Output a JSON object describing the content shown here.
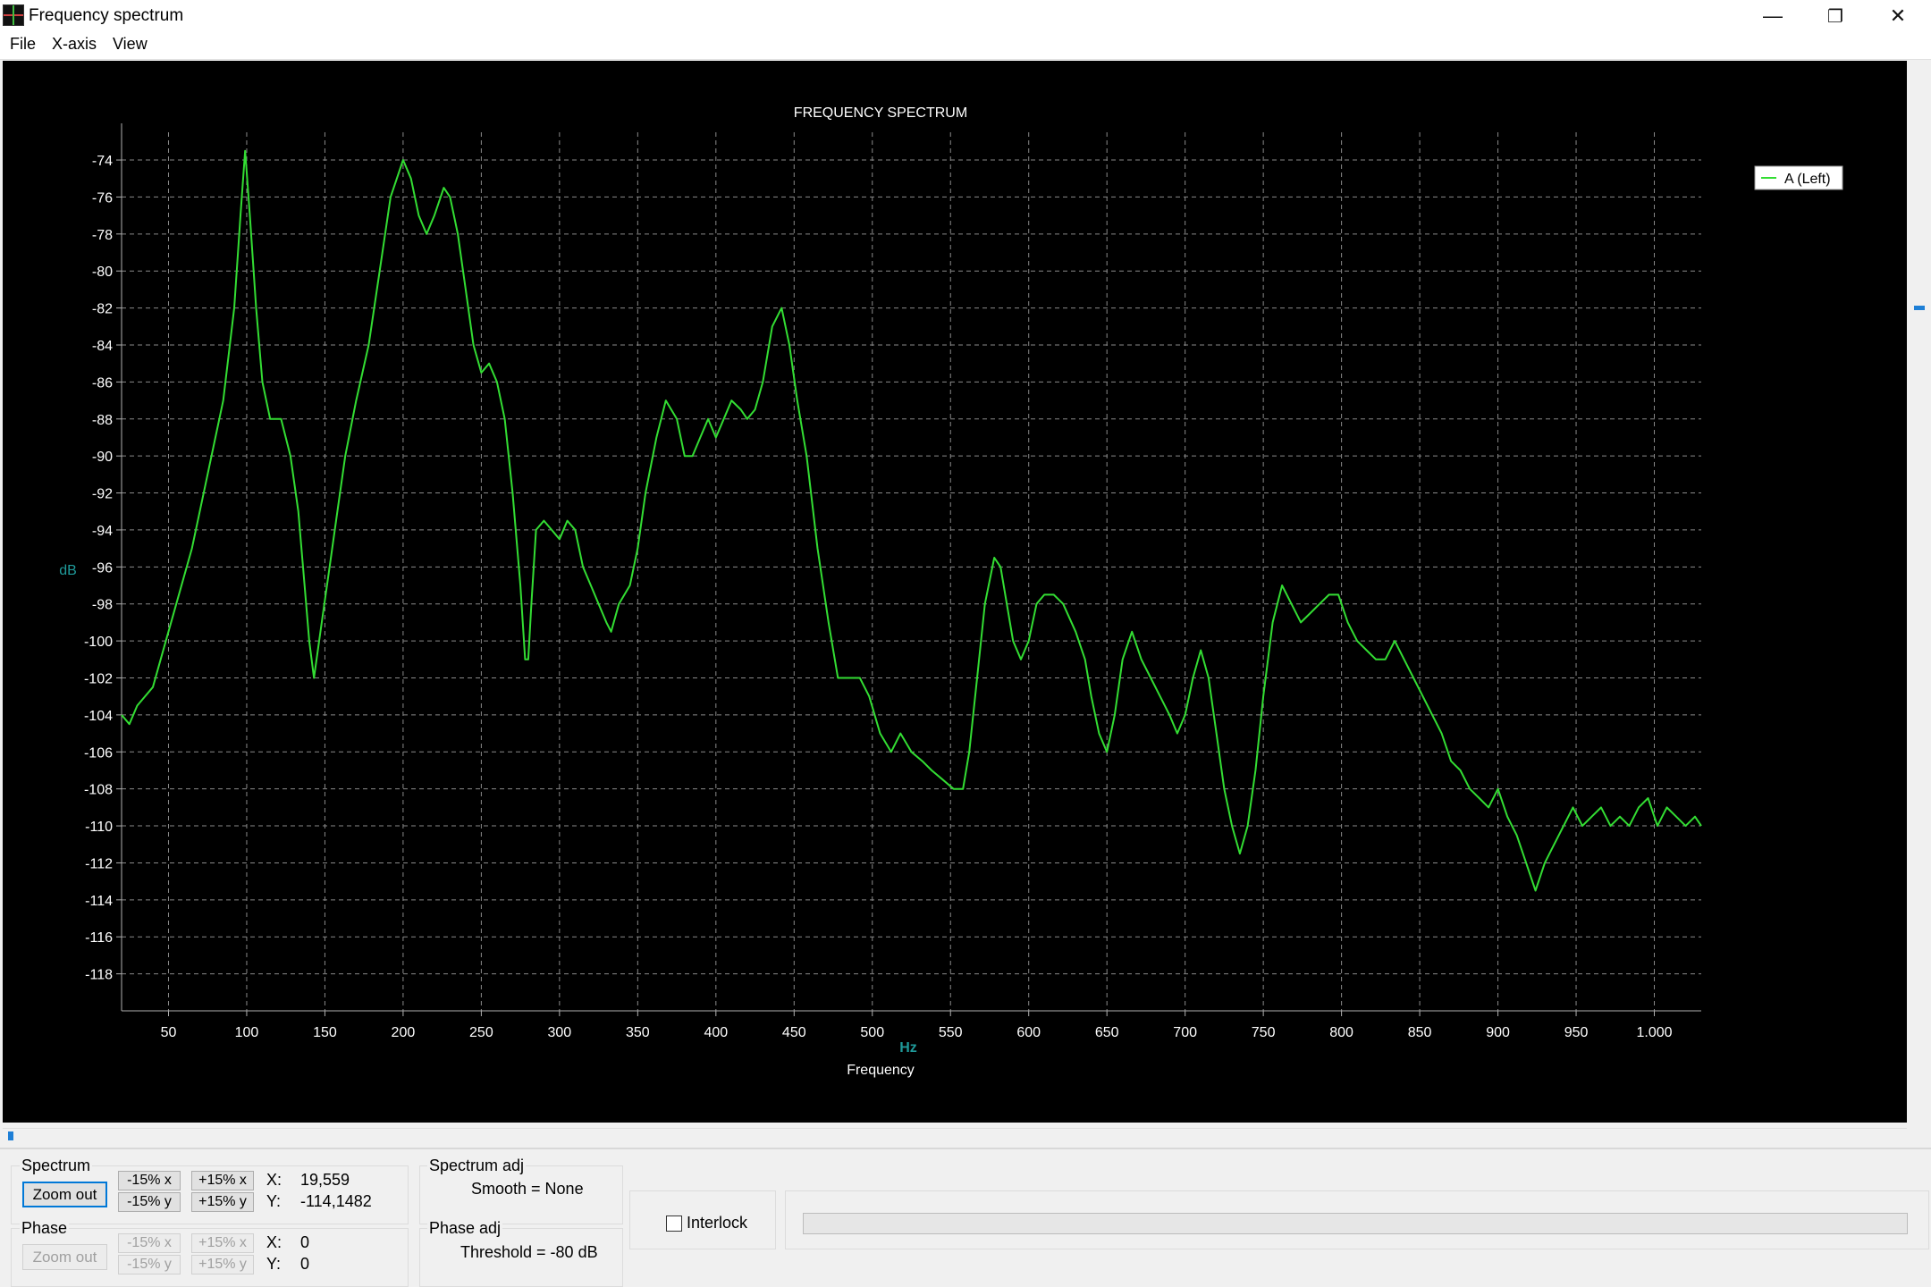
{
  "window": {
    "title": "Frequency spectrum",
    "controls": {
      "minimize": "—",
      "restore": "❐",
      "close": "✕"
    }
  },
  "menu": [
    "File",
    "X-axis",
    "View"
  ],
  "chart_data": {
    "type": "line",
    "title": "FREQUENCY SPECTRUM",
    "xlabel": "Frequency",
    "x_unit": "Hz",
    "ylabel": "dB",
    "xlim": [
      20,
      1030
    ],
    "ylim": [
      -120,
      -72.5
    ],
    "x_ticks": [
      50,
      100,
      150,
      200,
      250,
      300,
      350,
      400,
      450,
      500,
      550,
      600,
      650,
      700,
      750,
      800,
      850,
      900,
      950,
      1000
    ],
    "x_tick_labels": [
      "50",
      "100",
      "150",
      "200",
      "250",
      "300",
      "350",
      "400",
      "450",
      "500",
      "550",
      "600",
      "650",
      "700",
      "750",
      "800",
      "850",
      "900",
      "950",
      "1.000"
    ],
    "y_ticks": [
      -74,
      -76,
      -78,
      -80,
      -82,
      -84,
      -86,
      -88,
      -90,
      -92,
      -94,
      -96,
      -98,
      -100,
      -102,
      -104,
      -106,
      -108,
      -110,
      -112,
      -114,
      -116,
      -118
    ],
    "grid": true,
    "legend_position": "top-right",
    "background": "#000000",
    "series": [
      {
        "name": "A (Left)",
        "color": "#33dd33",
        "points": [
          [
            20,
            -104
          ],
          [
            25,
            -104.5
          ],
          [
            30,
            -103.5
          ],
          [
            40,
            -102.5
          ],
          [
            45,
            -101
          ],
          [
            55,
            -98
          ],
          [
            65,
            -95
          ],
          [
            75,
            -91
          ],
          [
            85,
            -87
          ],
          [
            92,
            -82
          ],
          [
            96,
            -77
          ],
          [
            99,
            -73.5
          ],
          [
            102,
            -77
          ],
          [
            106,
            -82
          ],
          [
            110,
            -86
          ],
          [
            115,
            -88
          ],
          [
            122,
            -88
          ],
          [
            128,
            -90
          ],
          [
            133,
            -93
          ],
          [
            137,
            -97
          ],
          [
            140,
            -100
          ],
          [
            143,
            -102
          ],
          [
            148,
            -99
          ],
          [
            153,
            -96
          ],
          [
            158,
            -93
          ],
          [
            163,
            -90
          ],
          [
            170,
            -87
          ],
          [
            178,
            -84
          ],
          [
            185,
            -80
          ],
          [
            192,
            -76
          ],
          [
            200,
            -74
          ],
          [
            205,
            -75
          ],
          [
            210,
            -77
          ],
          [
            215,
            -78
          ],
          [
            220,
            -77
          ],
          [
            226,
            -75.5
          ],
          [
            230,
            -76
          ],
          [
            235,
            -78
          ],
          [
            240,
            -81
          ],
          [
            245,
            -84
          ],
          [
            250,
            -85.5
          ],
          [
            255,
            -85
          ],
          [
            260,
            -86
          ],
          [
            265,
            -88
          ],
          [
            270,
            -92
          ],
          [
            275,
            -97
          ],
          [
            278,
            -101
          ],
          [
            280,
            -101
          ],
          [
            282,
            -98
          ],
          [
            285,
            -94
          ],
          [
            290,
            -93.5
          ],
          [
            295,
            -94
          ],
          [
            300,
            -94.5
          ],
          [
            305,
            -93.5
          ],
          [
            310,
            -94
          ],
          [
            315,
            -96
          ],
          [
            320,
            -97
          ],
          [
            325,
            -98
          ],
          [
            330,
            -99
          ],
          [
            333,
            -99.5
          ],
          [
            338,
            -98
          ],
          [
            345,
            -97
          ],
          [
            350,
            -95
          ],
          [
            355,
            -92
          ],
          [
            362,
            -89
          ],
          [
            368,
            -87
          ],
          [
            375,
            -88
          ],
          [
            380,
            -90
          ],
          [
            385,
            -90
          ],
          [
            390,
            -89
          ],
          [
            395,
            -88
          ],
          [
            400,
            -89
          ],
          [
            405,
            -88
          ],
          [
            410,
            -87
          ],
          [
            416,
            -87.5
          ],
          [
            420,
            -88
          ],
          [
            425,
            -87.5
          ],
          [
            430,
            -86
          ],
          [
            436,
            -83
          ],
          [
            442,
            -82
          ],
          [
            447,
            -84
          ],
          [
            452,
            -87
          ],
          [
            458,
            -90
          ],
          [
            465,
            -95
          ],
          [
            472,
            -99
          ],
          [
            478,
            -102
          ],
          [
            485,
            -102
          ],
          [
            492,
            -102
          ],
          [
            498,
            -103
          ],
          [
            505,
            -105
          ],
          [
            512,
            -106
          ],
          [
            518,
            -105
          ],
          [
            525,
            -106
          ],
          [
            532,
            -106.5
          ],
          [
            538,
            -107
          ],
          [
            545,
            -107.5
          ],
          [
            552,
            -108
          ],
          [
            558,
            -108
          ],
          [
            562,
            -106
          ],
          [
            567,
            -102
          ],
          [
            572,
            -98
          ],
          [
            578,
            -95.5
          ],
          [
            582,
            -96
          ],
          [
            586,
            -98
          ],
          [
            590,
            -100
          ],
          [
            595,
            -101
          ],
          [
            600,
            -100
          ],
          [
            605,
            -98
          ],
          [
            610,
            -97.5
          ],
          [
            616,
            -97.5
          ],
          [
            622,
            -98
          ],
          [
            630,
            -99.5
          ],
          [
            636,
            -101
          ],
          [
            640,
            -103
          ],
          [
            645,
            -105
          ],
          [
            650,
            -106
          ],
          [
            655,
            -104
          ],
          [
            660,
            -101
          ],
          [
            666,
            -99.5
          ],
          [
            672,
            -101
          ],
          [
            678,
            -102
          ],
          [
            684,
            -103
          ],
          [
            690,
            -104
          ],
          [
            695,
            -105
          ],
          [
            700,
            -104
          ],
          [
            705,
            -102
          ],
          [
            710,
            -100.5
          ],
          [
            715,
            -102
          ],
          [
            720,
            -105
          ],
          [
            725,
            -108
          ],
          [
            730,
            -110
          ],
          [
            735,
            -111.5
          ],
          [
            740,
            -110
          ],
          [
            745,
            -107
          ],
          [
            750,
            -103
          ],
          [
            756,
            -99
          ],
          [
            762,
            -97
          ],
          [
            768,
            -98
          ],
          [
            774,
            -99
          ],
          [
            780,
            -98.5
          ],
          [
            786,
            -98
          ],
          [
            792,
            -97.5
          ],
          [
            798,
            -97.5
          ],
          [
            804,
            -99
          ],
          [
            810,
            -100
          ],
          [
            816,
            -100.5
          ],
          [
            822,
            -101
          ],
          [
            828,
            -101
          ],
          [
            834,
            -100
          ],
          [
            840,
            -101
          ],
          [
            846,
            -102
          ],
          [
            852,
            -103
          ],
          [
            858,
            -104
          ],
          [
            864,
            -105
          ],
          [
            870,
            -106.5
          ],
          [
            876,
            -107
          ],
          [
            882,
            -108
          ],
          [
            888,
            -108.5
          ],
          [
            894,
            -109
          ],
          [
            900,
            -108
          ],
          [
            906,
            -109.5
          ],
          [
            912,
            -110.5
          ],
          [
            918,
            -112
          ],
          [
            924,
            -113.5
          ],
          [
            930,
            -112
          ],
          [
            936,
            -111
          ],
          [
            942,
            -110
          ],
          [
            948,
            -109
          ],
          [
            954,
            -110
          ],
          [
            960,
            -109.5
          ],
          [
            966,
            -109
          ],
          [
            972,
            -110
          ],
          [
            978,
            -109.5
          ],
          [
            984,
            -110
          ],
          [
            990,
            -109
          ],
          [
            996,
            -108.5
          ],
          [
            1002,
            -110
          ],
          [
            1008,
            -109
          ],
          [
            1014,
            -109.5
          ],
          [
            1020,
            -110
          ],
          [
            1026,
            -109.5
          ],
          [
            1030,
            -110
          ]
        ]
      }
    ]
  },
  "spectrum": {
    "title": "Spectrum",
    "zoom_out": "Zoom out",
    "minus_x": "-15% x",
    "plus_x": "+15% x",
    "minus_y": "-15% y",
    "plus_y": "+15% y",
    "x_label": "X:",
    "x_value": "19,559",
    "y_label": "Y:",
    "y_value": "-114,1482"
  },
  "phase": {
    "title": "Phase",
    "zoom_out": "Zoom out",
    "minus_x": "-15% x",
    "plus_x": "+15% x",
    "minus_y": "-15% y",
    "plus_y": "+15% y",
    "x_label": "X:",
    "x_value": "0",
    "y_label": "Y:",
    "y_value": "0"
  },
  "spectrum_adj": {
    "title": "Spectrum adj",
    "value": "Smooth = None"
  },
  "phase_adj": {
    "title": "Phase adj",
    "value": "Threshold = -80 dB"
  },
  "interlock": {
    "label": "Interlock",
    "checked": false
  }
}
